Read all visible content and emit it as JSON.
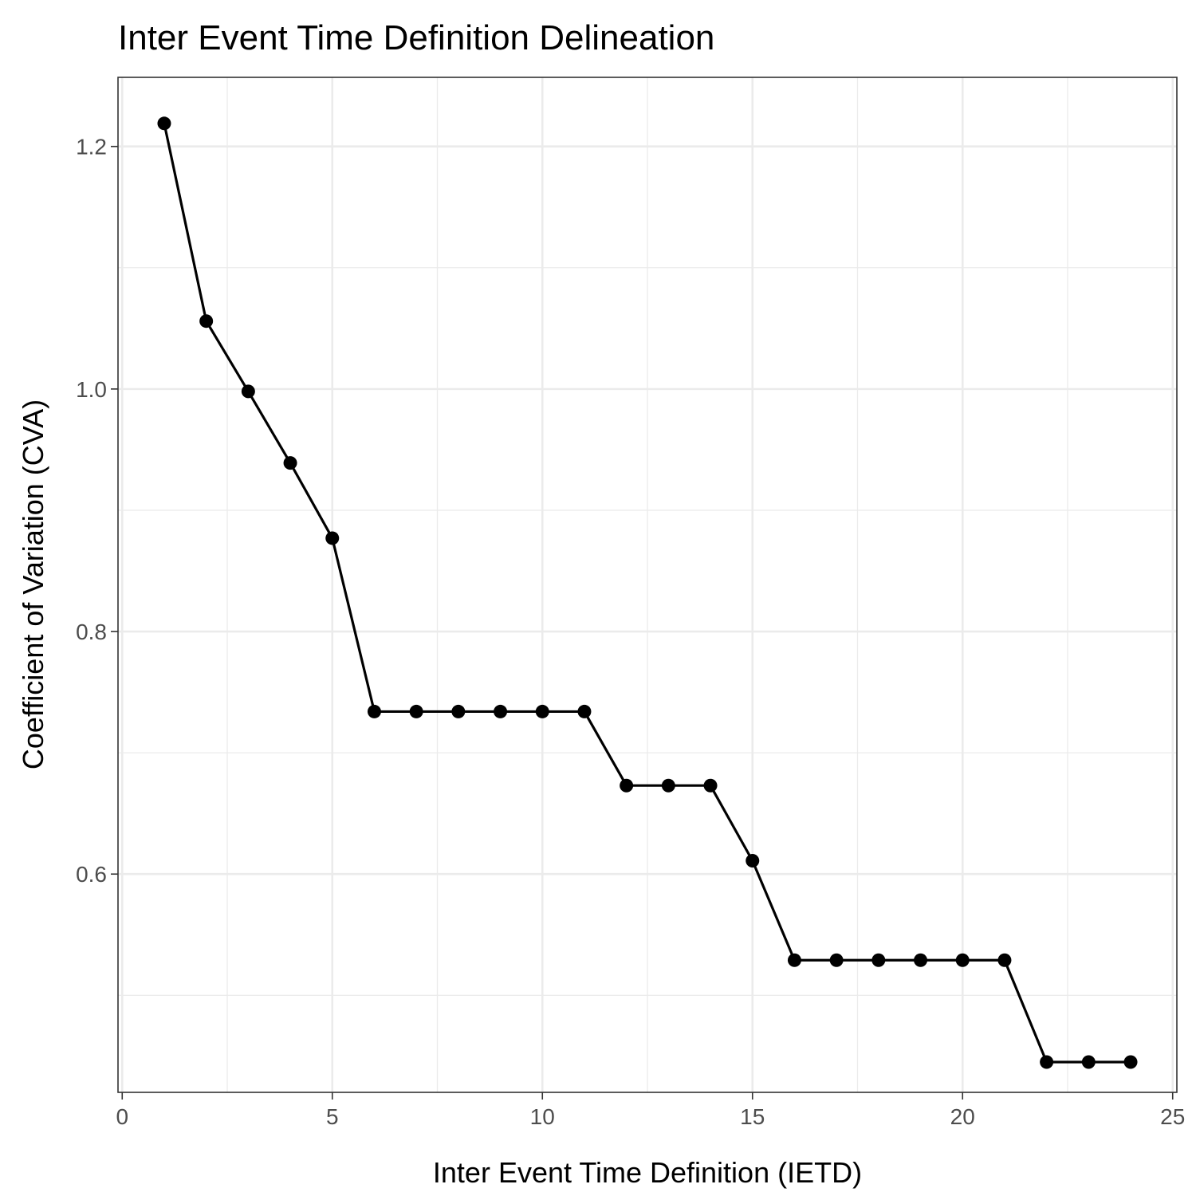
{
  "chart_data": {
    "type": "line",
    "title": "Inter Event Time Definition Delineation",
    "xlabel": "Inter Event Time Definition (IETD)",
    "ylabel": "Coefficient of Variation (CVA)",
    "xlim": [
      -0.1,
      25.1
    ],
    "ylim": [
      0.42,
      1.257
    ],
    "x_ticks": [
      0,
      5,
      10,
      15,
      20,
      25
    ],
    "x_tick_labels": [
      "0",
      "5",
      "10",
      "15",
      "20",
      "25"
    ],
    "y_ticks": [
      0.6,
      0.8,
      1.0,
      1.2
    ],
    "y_tick_labels": [
      "0.6",
      "0.8",
      "1.0",
      "1.2"
    ],
    "grid": true,
    "legend": "none",
    "series": [
      {
        "x": [
          1,
          2,
          3,
          4,
          5,
          6,
          7,
          8,
          9,
          10,
          11,
          12,
          13,
          14,
          15,
          16,
          17,
          18,
          19,
          20,
          21,
          22,
          23,
          24
        ],
        "values": [
          1.219,
          1.056,
          0.998,
          0.939,
          0.877,
          0.734,
          0.734,
          0.734,
          0.734,
          0.734,
          0.734,
          0.673,
          0.673,
          0.673,
          0.611,
          0.529,
          0.529,
          0.529,
          0.529,
          0.529,
          0.529,
          0.445,
          0.445,
          0.445
        ],
        "color": "#000000"
      }
    ]
  }
}
